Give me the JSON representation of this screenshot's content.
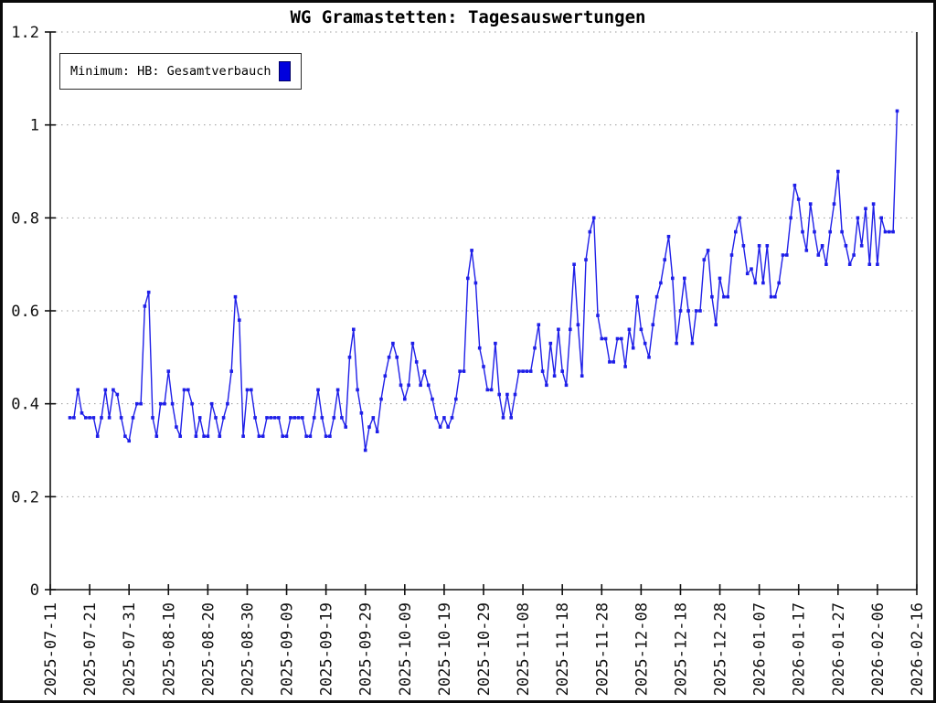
{
  "title": "WG Gramastetten: Tagesauswertungen",
  "legend": {
    "label": "Minimum: HB: Gesamtverbauch",
    "swatch_color": "#0000dd"
  },
  "colors": {
    "line": "#1f1fe8",
    "marker": "#1f1fe8",
    "grid": "#9a9a9a",
    "axis": "#111111",
    "background": "#ffffff",
    "frame": "#0a0a0a"
  },
  "axes": {
    "y": {
      "min": 0,
      "max": 1.2,
      "tick_step": 0.2,
      "tick_labels": [
        "0",
        "0.2",
        "0.4",
        "0.6",
        "0.8",
        "1",
        "1.2"
      ]
    },
    "x": {
      "start": "2025-07-11",
      "end": "2026-02-16",
      "tick_interval_days": 10,
      "tick_labels": [
        "2025-07-11",
        "2025-07-21",
        "2025-07-31",
        "2025-08-10",
        "2025-08-20",
        "2025-08-30",
        "2025-09-09",
        "2025-09-19",
        "2025-09-29",
        "2025-10-09",
        "2025-10-19",
        "2025-10-29",
        "2025-11-08",
        "2025-11-18",
        "2025-11-28",
        "2025-12-08",
        "2025-12-18",
        "2025-12-28",
        "2026-01-07",
        "2026-01-17",
        "2026-01-27",
        "2026-02-06",
        "2026-02-16"
      ]
    }
  },
  "chart_data": {
    "type": "line",
    "title": "WG Gramastetten: Tagesauswertungen",
    "xlabel": "",
    "ylabel": "",
    "ylim": [
      0,
      1.2
    ],
    "x_range_days": 220,
    "grid": "horizontal-dotted",
    "legend_position": "top-left",
    "marker": "square",
    "series": [
      {
        "name": "Minimum: HB: Gesamtverbauch",
        "color": "#1f1fe8",
        "start_date": "2025-07-16",
        "start_day_offset": 5,
        "interval_days": 1,
        "values": [
          0.37,
          0.37,
          0.43,
          0.38,
          0.37,
          0.37,
          0.37,
          0.33,
          0.37,
          0.43,
          0.37,
          0.43,
          0.42,
          0.37,
          0.33,
          0.32,
          0.37,
          0.4,
          0.4,
          0.61,
          0.64,
          0.37,
          0.33,
          0.4,
          0.4,
          0.47,
          0.4,
          0.35,
          0.33,
          0.43,
          0.43,
          0.4,
          0.33,
          0.37,
          0.33,
          0.33,
          0.4,
          0.37,
          0.33,
          0.37,
          0.4,
          0.47,
          0.63,
          0.58,
          0.33,
          0.43,
          0.43,
          0.37,
          0.33,
          0.33,
          0.37,
          0.37,
          0.37,
          0.37,
          0.33,
          0.33,
          0.37,
          0.37,
          0.37,
          0.37,
          0.33,
          0.33,
          0.37,
          0.43,
          0.37,
          0.33,
          0.33,
          0.37,
          0.43,
          0.37,
          0.35,
          0.5,
          0.56,
          0.43,
          0.38,
          0.3,
          0.35,
          0.37,
          0.34,
          0.41,
          0.46,
          0.5,
          0.53,
          0.5,
          0.44,
          0.41,
          0.44,
          0.53,
          0.49,
          0.44,
          0.47,
          0.44,
          0.41,
          0.37,
          0.35,
          0.37,
          0.35,
          0.37,
          0.41,
          0.47,
          0.47,
          0.67,
          0.73,
          0.66,
          0.52,
          0.48,
          0.43,
          0.43,
          0.53,
          0.42,
          0.37,
          0.42,
          0.37,
          0.42,
          0.47,
          0.47,
          0.47,
          0.47,
          0.52,
          0.57,
          0.47,
          0.44,
          0.53,
          0.46,
          0.56,
          0.47,
          0.44,
          0.56,
          0.7,
          0.57,
          0.46,
          0.71,
          0.77,
          0.8,
          0.59,
          0.54,
          0.54,
          0.49,
          0.49,
          0.54,
          0.54,
          0.48,
          0.56,
          0.52,
          0.63,
          0.56,
          0.53,
          0.5,
          0.57,
          0.63,
          0.66,
          0.71,
          0.76,
          0.67,
          0.53,
          0.6,
          0.67,
          0.6,
          0.53,
          0.6,
          0.6,
          0.71,
          0.73,
          0.63,
          0.57,
          0.67,
          0.63,
          0.63,
          0.72,
          0.77,
          0.8,
          0.74,
          0.68,
          0.69,
          0.66,
          0.74,
          0.66,
          0.74,
          0.63,
          0.63,
          0.66,
          0.72,
          0.72,
          0.8,
          0.87,
          0.84,
          0.77,
          0.73,
          0.83,
          0.77,
          0.72,
          0.74,
          0.7,
          0.77,
          0.83,
          0.9,
          0.77,
          0.74,
          0.7,
          0.72,
          0.8,
          0.74,
          0.82,
          0.7,
          0.83,
          0.7,
          0.8,
          0.77,
          0.77,
          0.77,
          1.03
        ]
      }
    ]
  }
}
